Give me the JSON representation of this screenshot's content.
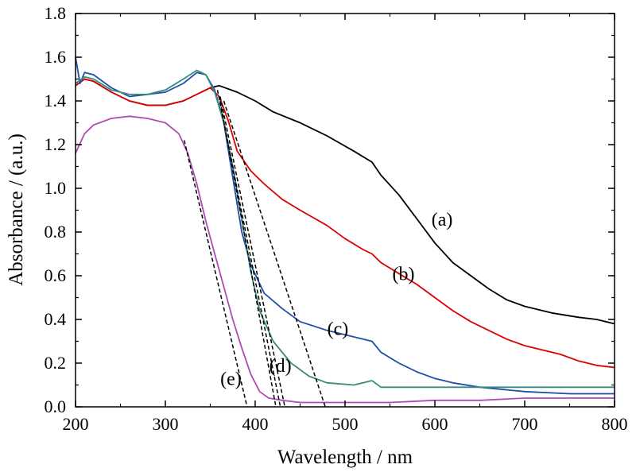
{
  "chart_data": {
    "type": "line",
    "title": "",
    "xlabel": "Wavelength / nm",
    "ylabel": "Absorbance / (a.u.)",
    "xlim": [
      200,
      800
    ],
    "ylim": [
      0.0,
      1.8
    ],
    "xticks": [
      "200",
      "300",
      "400",
      "500",
      "600",
      "700",
      "800"
    ],
    "yticks": [
      "0.0",
      "0.2",
      "0.4",
      "0.6",
      "0.8",
      "1.0",
      "1.2",
      "1.4",
      "1.6",
      "1.8"
    ],
    "grid": false,
    "series": [
      {
        "name": "(a)",
        "color": "#000000",
        "points": [
          [
            200,
            1.47
          ],
          [
            210,
            1.5
          ],
          [
            220,
            1.49
          ],
          [
            240,
            1.44
          ],
          [
            260,
            1.4
          ],
          [
            280,
            1.38
          ],
          [
            300,
            1.38
          ],
          [
            320,
            1.4
          ],
          [
            340,
            1.44
          ],
          [
            350,
            1.46
          ],
          [
            360,
            1.47
          ],
          [
            380,
            1.44
          ],
          [
            400,
            1.4
          ],
          [
            420,
            1.35
          ],
          [
            450,
            1.3
          ],
          [
            480,
            1.24
          ],
          [
            510,
            1.17
          ],
          [
            530,
            1.12
          ],
          [
            540,
            1.06
          ],
          [
            560,
            0.97
          ],
          [
            580,
            0.86
          ],
          [
            600,
            0.75
          ],
          [
            620,
            0.66
          ],
          [
            640,
            0.6
          ],
          [
            660,
            0.54
          ],
          [
            680,
            0.49
          ],
          [
            700,
            0.46
          ],
          [
            730,
            0.43
          ],
          [
            760,
            0.41
          ],
          [
            780,
            0.4
          ],
          [
            800,
            0.38
          ]
        ]
      },
      {
        "name": "(b)",
        "color": "#dd0000",
        "points": [
          [
            200,
            1.47
          ],
          [
            210,
            1.5
          ],
          [
            220,
            1.49
          ],
          [
            240,
            1.44
          ],
          [
            260,
            1.4
          ],
          [
            280,
            1.38
          ],
          [
            300,
            1.38
          ],
          [
            320,
            1.4
          ],
          [
            340,
            1.44
          ],
          [
            350,
            1.46
          ],
          [
            360,
            1.42
          ],
          [
            370,
            1.31
          ],
          [
            380,
            1.17
          ],
          [
            395,
            1.08
          ],
          [
            410,
            1.02
          ],
          [
            430,
            0.95
          ],
          [
            450,
            0.9
          ],
          [
            480,
            0.83
          ],
          [
            500,
            0.77
          ],
          [
            520,
            0.72
          ],
          [
            530,
            0.7
          ],
          [
            540,
            0.66
          ],
          [
            560,
            0.61
          ],
          [
            580,
            0.56
          ],
          [
            600,
            0.5
          ],
          [
            620,
            0.44
          ],
          [
            640,
            0.39
          ],
          [
            660,
            0.35
          ],
          [
            680,
            0.31
          ],
          [
            700,
            0.28
          ],
          [
            720,
            0.26
          ],
          [
            740,
            0.24
          ],
          [
            760,
            0.21
          ],
          [
            780,
            0.19
          ],
          [
            800,
            0.18
          ]
        ]
      },
      {
        "name": "(c)",
        "color": "#1f4fa8",
        "points": [
          [
            200,
            1.6
          ],
          [
            205,
            1.48
          ],
          [
            210,
            1.53
          ],
          [
            220,
            1.52
          ],
          [
            240,
            1.46
          ],
          [
            260,
            1.42
          ],
          [
            280,
            1.43
          ],
          [
            300,
            1.44
          ],
          [
            320,
            1.48
          ],
          [
            335,
            1.53
          ],
          [
            345,
            1.52
          ],
          [
            355,
            1.45
          ],
          [
            365,
            1.3
          ],
          [
            375,
            1.05
          ],
          [
            385,
            0.8
          ],
          [
            395,
            0.65
          ],
          [
            410,
            0.52
          ],
          [
            430,
            0.45
          ],
          [
            450,
            0.39
          ],
          [
            480,
            0.35
          ],
          [
            510,
            0.32
          ],
          [
            530,
            0.3
          ],
          [
            540,
            0.25
          ],
          [
            560,
            0.2
          ],
          [
            580,
            0.16
          ],
          [
            600,
            0.13
          ],
          [
            620,
            0.11
          ],
          [
            650,
            0.09
          ],
          [
            700,
            0.07
          ],
          [
            750,
            0.06
          ],
          [
            800,
            0.06
          ]
        ]
      },
      {
        "name": "(d)",
        "color": "#3a8a80",
        "points": [
          [
            200,
            1.48
          ],
          [
            210,
            1.51
          ],
          [
            220,
            1.5
          ],
          [
            240,
            1.45
          ],
          [
            260,
            1.43
          ],
          [
            280,
            1.43
          ],
          [
            300,
            1.45
          ],
          [
            320,
            1.5
          ],
          [
            335,
            1.54
          ],
          [
            345,
            1.52
          ],
          [
            355,
            1.44
          ],
          [
            365,
            1.3
          ],
          [
            375,
            1.1
          ],
          [
            385,
            0.86
          ],
          [
            395,
            0.62
          ],
          [
            405,
            0.44
          ],
          [
            420,
            0.3
          ],
          [
            440,
            0.2
          ],
          [
            460,
            0.14
          ],
          [
            480,
            0.11
          ],
          [
            510,
            0.1
          ],
          [
            530,
            0.12
          ],
          [
            540,
            0.09
          ],
          [
            600,
            0.09
          ],
          [
            700,
            0.09
          ],
          [
            800,
            0.09
          ]
        ]
      },
      {
        "name": "(e)",
        "color": "#b04cb0",
        "points": [
          [
            200,
            1.16
          ],
          [
            210,
            1.25
          ],
          [
            220,
            1.29
          ],
          [
            240,
            1.32
          ],
          [
            260,
            1.33
          ],
          [
            280,
            1.32
          ],
          [
            300,
            1.3
          ],
          [
            315,
            1.25
          ],
          [
            325,
            1.16
          ],
          [
            335,
            1.02
          ],
          [
            345,
            0.85
          ],
          [
            355,
            0.7
          ],
          [
            365,
            0.55
          ],
          [
            375,
            0.4
          ],
          [
            385,
            0.27
          ],
          [
            395,
            0.15
          ],
          [
            405,
            0.07
          ],
          [
            415,
            0.04
          ],
          [
            430,
            0.03
          ],
          [
            450,
            0.02
          ],
          [
            500,
            0.02
          ],
          [
            550,
            0.02
          ],
          [
            600,
            0.03
          ],
          [
            650,
            0.03
          ],
          [
            700,
            0.04
          ],
          [
            750,
            0.04
          ],
          [
            800,
            0.04
          ]
        ]
      }
    ],
    "tangent_lines": [
      {
        "points": [
          [
            321,
            1.22
          ],
          [
            391,
            0.0
          ]
        ]
      },
      {
        "points": [
          [
            361,
            1.4
          ],
          [
            423,
            0.0
          ]
        ]
      },
      {
        "points": [
          [
            358,
            1.45
          ],
          [
            428,
            0.0
          ]
        ]
      },
      {
        "points": [
          [
            361,
            1.42
          ],
          [
            433,
            0.0
          ]
        ]
      },
      {
        "points": [
          [
            365,
            1.4
          ],
          [
            478,
            0.0
          ]
        ]
      }
    ],
    "labels": [
      {
        "text": "(a)",
        "at": [
          608,
          0.83
        ]
      },
      {
        "text": "(b)",
        "at": [
          565,
          0.58
        ]
      },
      {
        "text": "(c)",
        "at": [
          492,
          0.33
        ]
      },
      {
        "text": "(d)",
        "at": [
          428,
          0.16
        ]
      },
      {
        "text": "(e)",
        "at": [
          373,
          0.1
        ]
      }
    ]
  }
}
